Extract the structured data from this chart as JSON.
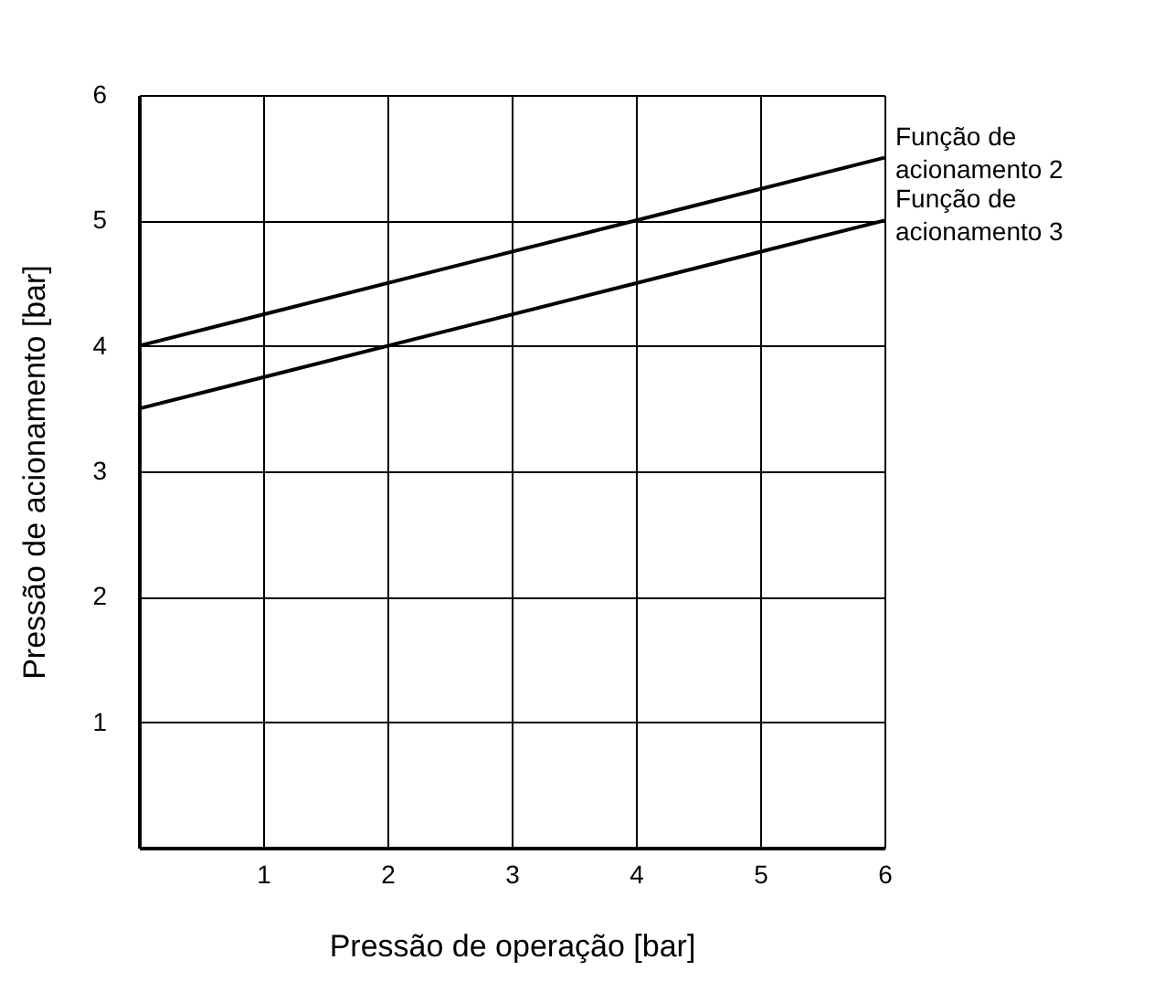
{
  "chart_data": {
    "type": "line",
    "xlabel": "Pressão de operação [bar]",
    "ylabel": "Pressão de acionamento [bar]",
    "x": [
      0,
      6
    ],
    "series": [
      {
        "name": "Função de acionamento 2",
        "color": "#000000",
        "values": [
          4,
          5.5
        ]
      },
      {
        "name": "Função de acionamento 3",
        "color": "#000000",
        "values": [
          3.5,
          5
        ]
      }
    ],
    "xlim": [
      0,
      6
    ],
    "ylim": [
      0,
      6
    ],
    "xticks": [
      1,
      2,
      3,
      4,
      5,
      6
    ],
    "yticks": [
      1,
      2,
      3,
      4,
      5,
      6
    ],
    "grid": true,
    "marker": "none",
    "line_style": "solid"
  }
}
